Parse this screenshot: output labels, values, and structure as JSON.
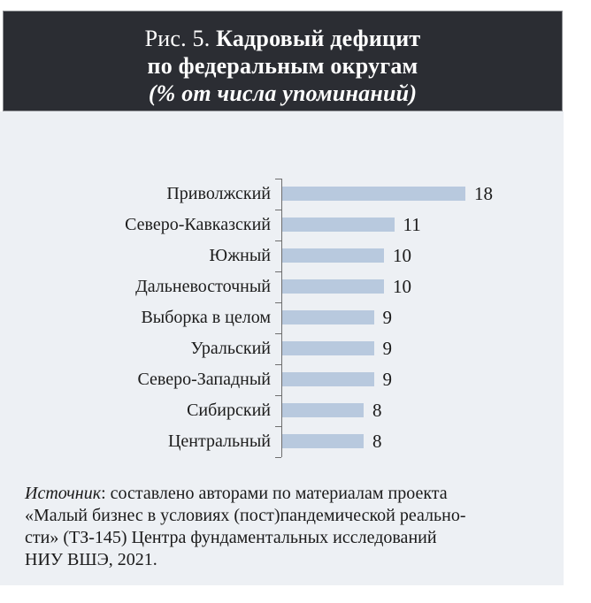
{
  "header": {
    "prefix": "Рис. 5. ",
    "title_bold": "Кадровый дефицит",
    "line2": "по федеральным округам",
    "line3": "(% от числа упоминаний)"
  },
  "chart_data": {
    "type": "bar",
    "orientation": "horizontal",
    "title": "Рис. 5. Кадровый дефицит по федеральным округам (% от числа упоминаний)",
    "categories": [
      "Приволжский",
      "Северо-Кавказский",
      "Южный",
      "Дальневосточный",
      "Выборка в целом",
      "Уральский",
      "Северо-Западный",
      "Сибирский",
      "Центральный"
    ],
    "values": [
      18,
      11,
      10,
      10,
      9,
      9,
      9,
      8,
      8
    ],
    "xlabel": "",
    "ylabel": "",
    "xlim": [
      0,
      18
    ],
    "value_labels": true,
    "grid": false,
    "legend": false,
    "bar_color": "#b8c9de",
    "background": "#edf0f4"
  },
  "source": {
    "label": "Источник",
    "line1_rest": ": составлено авторами по материалам проекта",
    "line2": "«Малый бизнес в условиях (пост)пандемической реально-",
    "line3": "сти» (ТЗ-145) Центра фундаментальных исследований",
    "line4": "НИУ ВШЭ, 2021."
  },
  "colors": {
    "banner_bg": "#2b2d33",
    "banner_border": "#8e9094",
    "card_bg": "#edf0f4",
    "bar": "#b8c9de",
    "axis": "#6e6e6e",
    "text": "#1a1a1a",
    "title_text": "#ffffff"
  }
}
